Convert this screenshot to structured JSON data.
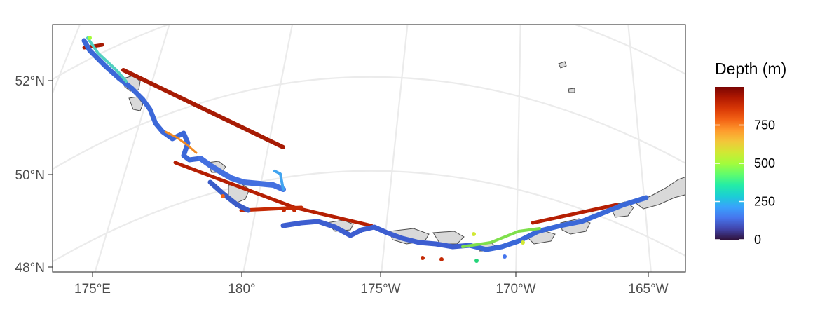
{
  "legend": {
    "title": "Depth (m)",
    "ticks": [
      {
        "value": 0,
        "label": "0"
      },
      {
        "value": 250,
        "label": "250"
      },
      {
        "value": 500,
        "label": "500"
      },
      {
        "value": 750,
        "label": "750"
      }
    ],
    "range": [
      0,
      1000
    ],
    "colors": [
      "#30123b",
      "#4145ab",
      "#4675ed",
      "#39a2fc",
      "#1bcfd4",
      "#24eca6",
      "#61fc6c",
      "#a4fc3b",
      "#d1e834",
      "#f3c63a",
      "#fe9b2d",
      "#f36315",
      "#d93806",
      "#b11901",
      "#7a0403"
    ]
  },
  "axes": {
    "x_labels": [
      "175°E",
      "180°",
      "175°W",
      "170°W",
      "165°W"
    ],
    "y_labels": [
      "52°N",
      "50°N",
      "48°N"
    ]
  },
  "colors": {
    "panel_border": "#333333",
    "graticule": "#ebebeb",
    "land_fill": "#d9d9d9",
    "land_stroke": "#4d4d4d"
  }
}
